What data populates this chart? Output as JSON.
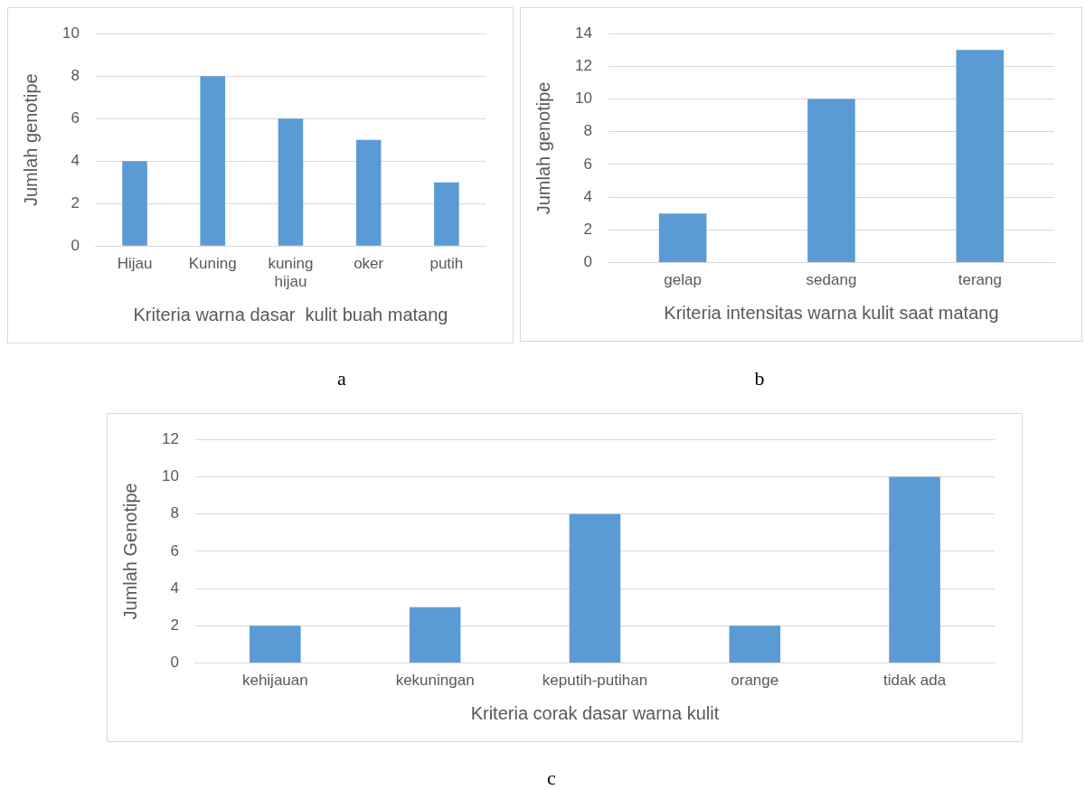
{
  "chart_data": [
    {
      "type": "bar",
      "categories": [
        "Hijau",
        "Kuning",
        "kuning hijau",
        "oker",
        "putih"
      ],
      "values": [
        4,
        8,
        6,
        5,
        3
      ],
      "color": "#5b9bd5",
      "xlabel": "Kriteria warna dasar  kulit buah matang",
      "ylabel": "Jumlah genotipe",
      "ylim": [
        0,
        10
      ],
      "yticks": [
        0,
        2,
        4,
        6,
        8,
        10
      ],
      "grid": "y",
      "annotations": [
        "a"
      ]
    },
    {
      "type": "bar",
      "categories": [
        "gelap",
        "sedang",
        "terang"
      ],
      "values": [
        3,
        10,
        13
      ],
      "color": "#5b9bd5",
      "xlabel": "Kriteria intensitas warna kulit saat matang",
      "ylabel": "Jumlah genotipe",
      "ylim": [
        0,
        14
      ],
      "yticks": [
        0,
        2,
        4,
        6,
        8,
        10,
        12,
        14
      ],
      "grid": "y",
      "annotations": [
        "b"
      ]
    },
    {
      "type": "bar",
      "categories": [
        "kehijauan",
        "kekuningan",
        "keputih-putihan",
        "orange",
        "tidak ada"
      ],
      "values": [
        2,
        3,
        8,
        2,
        10
      ],
      "color": "#5b9bd5",
      "xlabel": "Kriteria corak dasar warna kulit",
      "ylabel": "Jumlah Genotipe",
      "ylim": [
        0,
        12
      ],
      "yticks": [
        0,
        2,
        4,
        6,
        8,
        10,
        12
      ],
      "grid": "y",
      "annotations": [
        "c"
      ]
    }
  ]
}
